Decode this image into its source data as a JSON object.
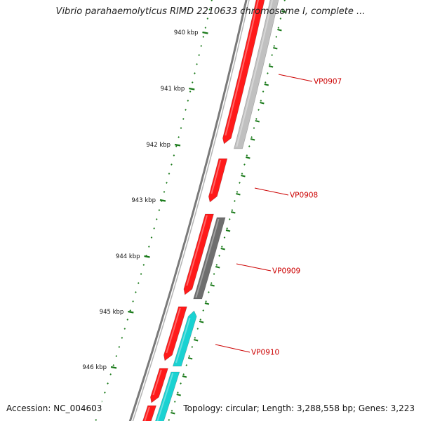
{
  "title": "Vibrio parahaemolyticus RIMD 2210633 chromosome I, complete ...",
  "footer": {
    "accession": "Accession: NC_004603",
    "summary": "Topology: circular; Length: 3,288,558 bp; Genes: 3,223"
  },
  "colors": {
    "forward_cds": "#ff1a1a",
    "reverse_gray": "#c0c0c0",
    "reverse_dark": "#6e6e6e",
    "reverse_cyan": "#1ad2d2",
    "backbone": "#8a8a8a",
    "tick": "#1a7a1a",
    "gene_label": "#cc0000"
  },
  "ruler": {
    "unit": "kbp",
    "labels": [
      "940 kbp",
      "941 kbp",
      "942 kbp",
      "943 kbp",
      "944 kbp",
      "945 kbp",
      "946 kbp"
    ]
  },
  "gene_labels": [
    "VP0907",
    "VP0908",
    "VP0909",
    "VP0910"
  ]
}
